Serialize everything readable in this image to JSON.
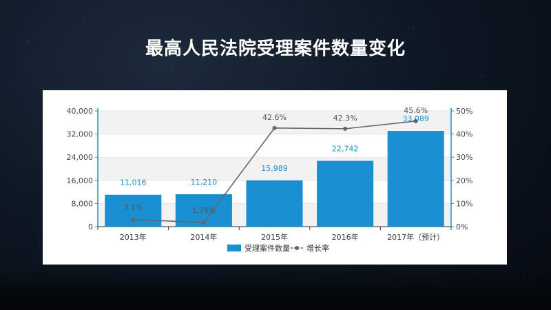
{
  "page": {
    "title": "最高人民法院受理案件数量变化"
  },
  "colors": {
    "bar": "#1a8fd1",
    "line": "#666666",
    "bar_label": "#1a8fd1",
    "line_label": "#555555"
  },
  "chart_data": {
    "type": "bar",
    "title": "",
    "categories": [
      "2013年",
      "2014年",
      "2015年",
      "2016年",
      "2017年（预计）"
    ],
    "series": [
      {
        "name": "受理案件数量",
        "type": "bar",
        "axis": "left",
        "values": [
          11016,
          11210,
          15989,
          22742,
          33089
        ],
        "labels": [
          "11,016",
          "11,210",
          "15,989",
          "22,742",
          "33,089"
        ]
      },
      {
        "name": "增长率",
        "type": "line",
        "axis": "right",
        "values": [
          3.1,
          1.76,
          42.6,
          42.3,
          45.6
        ],
        "labels": [
          "3.1%",
          "1.76%",
          "42.6%",
          "42.3%",
          "45.6%"
        ]
      }
    ],
    "y_left": {
      "min": 0,
      "max": 40000,
      "ticks": [
        "0",
        "8,000",
        "16,000",
        "24,000",
        "32,000",
        "40,000"
      ]
    },
    "y_right": {
      "min": 0,
      "max": 50,
      "ticks": [
        "0%",
        "10%",
        "20%",
        "30%",
        "40%",
        "50%"
      ]
    },
    "legend": {
      "position": "bottom"
    },
    "grid": true
  }
}
